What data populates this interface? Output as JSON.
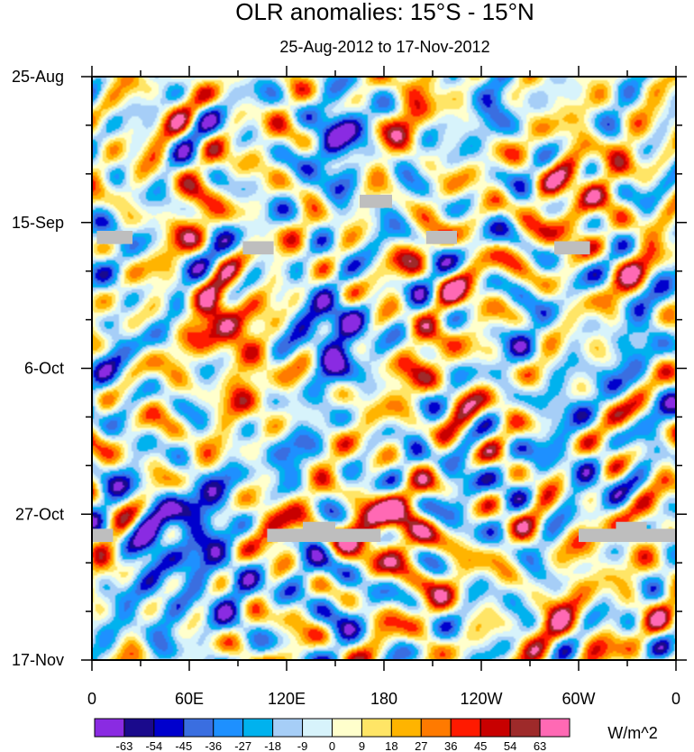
{
  "chart_data": {
    "type": "heatmap",
    "title": "OLR anomalies: 15°S - 15°N",
    "subtitle": "25-Aug-2012 to 17-Nov-2012",
    "x_label_ticks": [
      "0",
      "60E",
      "120E",
      "180",
      "120W",
      "60W",
      "0"
    ],
    "x_tick_lon": [
      0,
      60,
      120,
      180,
      240,
      300,
      360
    ],
    "x_range_deg": [
      0,
      360
    ],
    "y_label_ticks": [
      "25-Aug",
      "15-Sep",
      "6-Oct",
      "27-Oct",
      "17-Nov"
    ],
    "y_tick_day": [
      0,
      21,
      42,
      63,
      84
    ],
    "y_range_days": [
      0,
      84
    ],
    "y_direction": "time increases downward",
    "units": "W/m^2",
    "colorbar": {
      "levels": [
        -63,
        -54,
        -45,
        -36,
        -27,
        -18,
        -9,
        0,
        9,
        18,
        27,
        36,
        45,
        54,
        63
      ],
      "colors": [
        "#8a2be2",
        "#1a0a8c",
        "#0000cd",
        "#3a6ee0",
        "#1e90ff",
        "#00b2ee",
        "#a6cef7",
        "#d7f3fb",
        "#ffffcc",
        "#ffe566",
        "#ffb400",
        "#ff7a00",
        "#ff1a00",
        "#c80000",
        "#9e2a2a",
        "#ff69b4"
      ]
    },
    "missing_color": "#bebebe",
    "features": [
      {
        "lon": 85,
        "day": 36,
        "value": 46,
        "sx": 14,
        "sy": 3
      },
      {
        "lon": 73,
        "day": 32,
        "value": 30,
        "sx": 8,
        "sy": 2
      },
      {
        "lon": 95,
        "day": 45,
        "value": 28,
        "sx": 10,
        "sy": 4
      },
      {
        "lon": 150,
        "day": 36,
        "value": -58,
        "sx": 14,
        "sy": 3
      },
      {
        "lon": 148,
        "day": 41,
        "value": -30,
        "sx": 10,
        "sy": 3
      },
      {
        "lon": 150,
        "day": 11,
        "value": -45,
        "sx": 9,
        "sy": 5
      },
      {
        "lon": 158,
        "day": 5,
        "value": -30,
        "sx": 8,
        "sy": 3
      },
      {
        "lon": 60,
        "day": 62,
        "value": -45,
        "sx": 18,
        "sy": 4
      },
      {
        "lon": 75,
        "day": 72,
        "value": -38,
        "sx": 16,
        "sy": 4
      },
      {
        "lon": 40,
        "day": 78,
        "value": -30,
        "sx": 12,
        "sy": 3
      },
      {
        "lon": 35,
        "day": 67,
        "value": -48,
        "sx": 8,
        "sy": 3
      },
      {
        "lon": 145,
        "day": 73,
        "value": -35,
        "sx": 10,
        "sy": 4
      },
      {
        "lon": 110,
        "day": 64,
        "value": 38,
        "sx": 10,
        "sy": 3
      },
      {
        "lon": 165,
        "day": 65,
        "value": 36,
        "sx": 18,
        "sy": 3
      },
      {
        "lon": 190,
        "day": 63,
        "value": 24,
        "sx": 14,
        "sy": 3
      },
      {
        "lon": 200,
        "day": 70,
        "value": 20,
        "sx": 16,
        "sy": 5
      },
      {
        "lon": 300,
        "day": 13,
        "value": 25,
        "sx": 15,
        "sy": 4
      },
      {
        "lon": 290,
        "day": 20,
        "value": 20,
        "sx": 12,
        "sy": 4
      },
      {
        "lon": 300,
        "day": 55,
        "value": -34,
        "sx": 12,
        "sy": 8
      },
      {
        "lon": 300,
        "day": 65,
        "value": 40,
        "sx": 10,
        "sy": 3
      },
      {
        "lon": 295,
        "day": 80,
        "value": 30,
        "sx": 12,
        "sy": 4
      },
      {
        "lon": 310,
        "day": 52,
        "value": 28,
        "sx": 10,
        "sy": 3
      },
      {
        "lon": 190,
        "day": 4,
        "value": 22,
        "sx": 14,
        "sy": 4
      },
      {
        "lon": 60,
        "day": 18,
        "value": 22,
        "sx": 10,
        "sy": 4
      },
      {
        "lon": 25,
        "day": 2,
        "value": 18,
        "sx": 10,
        "sy": 2
      },
      {
        "lon": 230,
        "day": 30,
        "value": 20,
        "sx": 12,
        "sy": 4
      },
      {
        "lon": 330,
        "day": 25,
        "value": 18,
        "sx": 10,
        "sy": 5
      },
      {
        "lon": 250,
        "day": 5,
        "value": -25,
        "sx": 10,
        "sy": 4
      },
      {
        "lon": 225,
        "day": 58,
        "value": -20,
        "sx": 12,
        "sy": 5
      },
      {
        "lon": 230,
        "day": 48,
        "value": 22,
        "sx": 12,
        "sy": 3
      },
      {
        "lon": 340,
        "day": 40,
        "value": -20,
        "sx": 12,
        "sy": 6
      },
      {
        "lon": 15,
        "day": 45,
        "value": -20,
        "sx": 8,
        "sy": 6
      },
      {
        "lon": 45,
        "day": 54,
        "value": 20,
        "sx": 8,
        "sy": 4
      },
      {
        "lon": 120,
        "day": 55,
        "value": -20,
        "sx": 14,
        "sy": 5
      },
      {
        "lon": 200,
        "day": 40,
        "value": 18,
        "sx": 14,
        "sy": 5
      },
      {
        "lon": 265,
        "day": 38,
        "value": -18,
        "sx": 10,
        "sy": 5
      },
      {
        "lon": 340,
        "day": 72,
        "value": 15,
        "sx": 10,
        "sy": 5
      },
      {
        "lon": 10,
        "day": 28,
        "value": -18,
        "sx": 8,
        "sy": 5
      }
    ],
    "missing_bars": [
      {
        "lon0": 3,
        "lon1": 25,
        "day0": 22.2,
        "day1": 24.1
      },
      {
        "lon0": 93,
        "lon1": 112,
        "day0": 23.7,
        "day1": 25.6
      },
      {
        "lon0": 165,
        "lon1": 185,
        "day0": 17.0,
        "day1": 18.9
      },
      {
        "lon0": 206,
        "lon1": 225,
        "day0": 22.2,
        "day1": 24.1
      },
      {
        "lon0": 285,
        "lon1": 307,
        "day0": 23.7,
        "day1": 25.6
      },
      {
        "lon0": 0,
        "lon1": 13,
        "day0": 65.1,
        "day1": 67.0
      },
      {
        "lon0": 108,
        "lon1": 178,
        "day0": 65.1,
        "day1": 67.0
      },
      {
        "lon0": 130,
        "lon1": 150,
        "day0": 64.1,
        "day1": 65.5
      },
      {
        "lon0": 300,
        "lon1": 360,
        "day0": 65.1,
        "day1": 67.0
      },
      {
        "lon0": 323,
        "lon1": 342,
        "day0": 64.1,
        "day1": 65.5
      }
    ]
  }
}
